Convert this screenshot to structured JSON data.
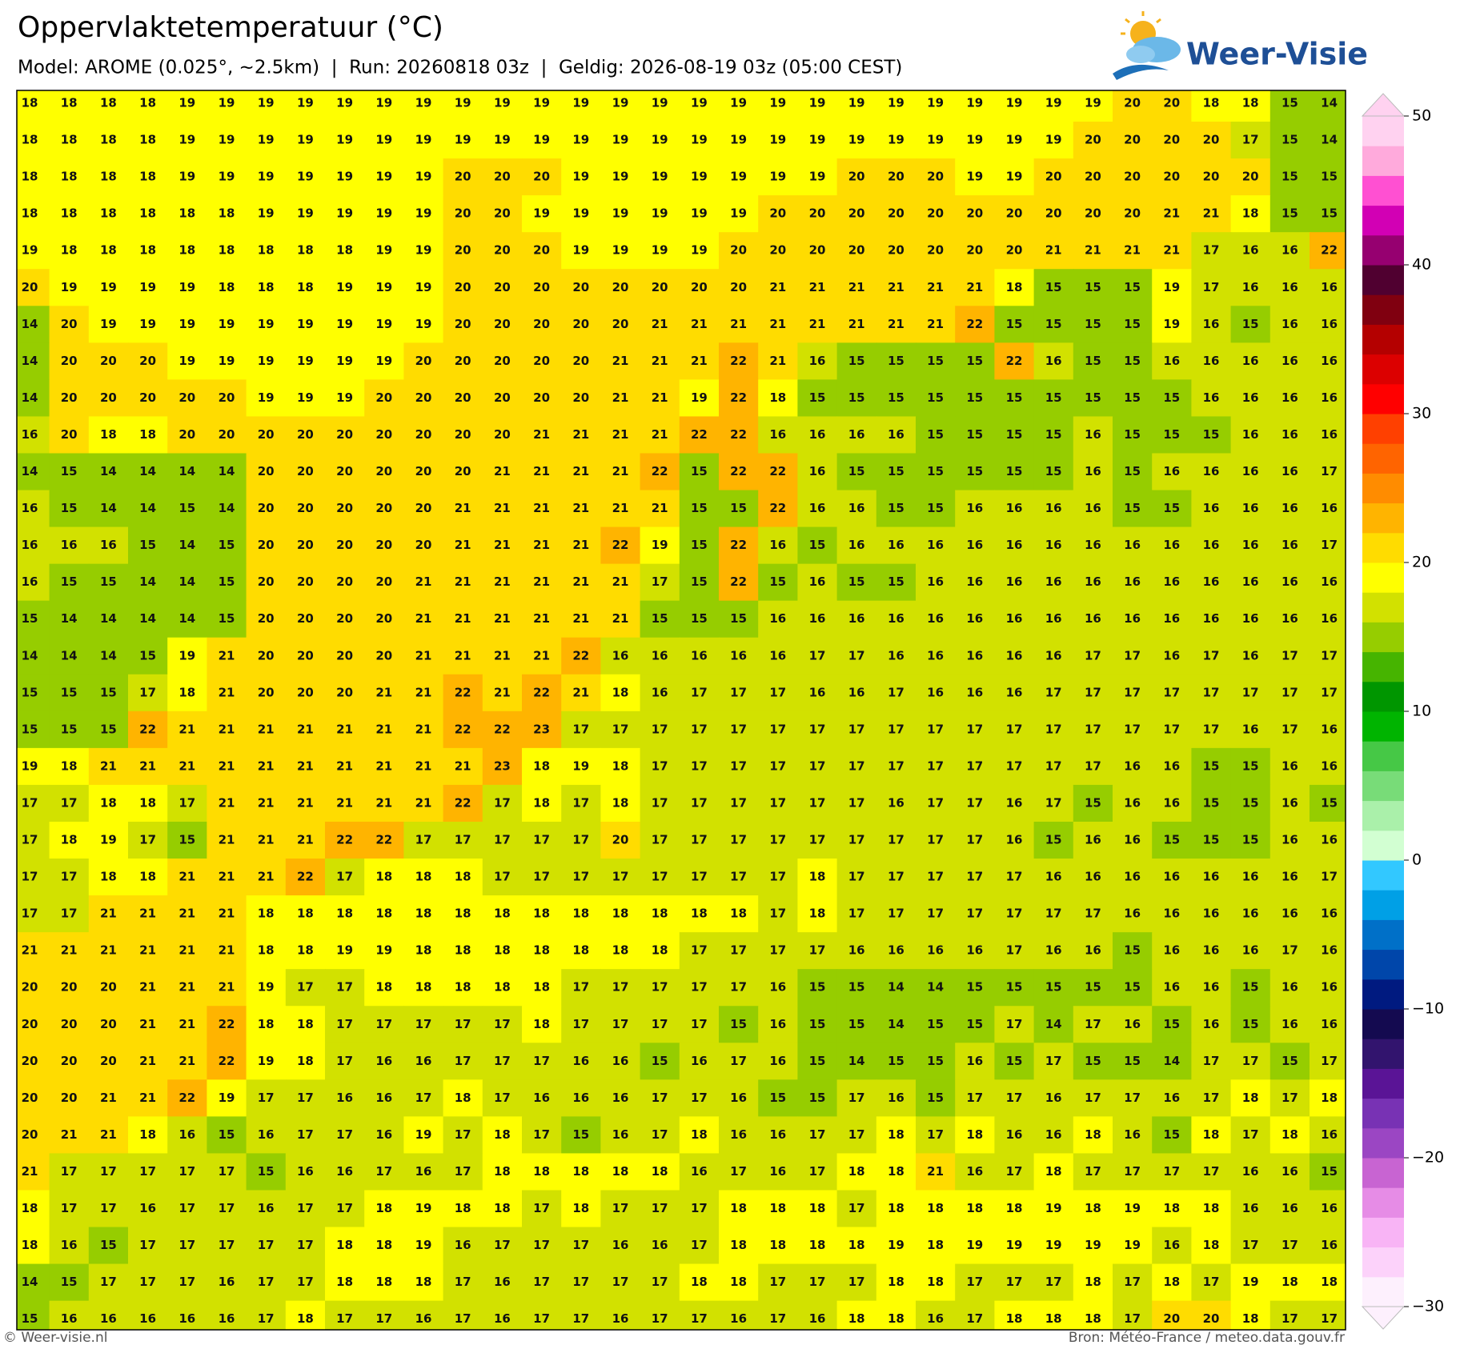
{
  "header": {
    "title": "Oppervlaktetemperatuur (°C)",
    "subtitle": "Model: AROME (0.025°, ~2.5km)  |  Run: 20260818 03z  |  Geldig: 2026-08-19 03z (05:00 CEST)"
  },
  "logo": "Weer-Visie",
  "map": {
    "grid": [
      [
        18,
        18,
        18,
        18,
        19,
        19,
        19,
        19,
        19,
        19,
        19,
        19,
        19,
        19,
        19,
        19,
        19,
        19,
        19,
        19,
        19,
        19,
        19,
        19,
        19,
        19,
        19,
        19,
        20,
        20,
        18,
        18,
        15,
        14
      ],
      [
        18,
        18,
        18,
        18,
        19,
        19,
        19,
        19,
        19,
        19,
        19,
        19,
        19,
        19,
        19,
        19,
        19,
        19,
        19,
        19,
        19,
        19,
        19,
        19,
        19,
        19,
        19,
        20,
        20,
        20,
        20,
        17,
        15,
        14
      ],
      [
        18,
        18,
        18,
        18,
        19,
        19,
        19,
        19,
        19,
        19,
        19,
        20,
        20,
        20,
        19,
        19,
        19,
        19,
        19,
        19,
        19,
        20,
        20,
        20,
        19,
        19,
        20,
        20,
        20,
        20,
        20,
        20,
        15,
        15
      ],
      [
        18,
        18,
        18,
        18,
        18,
        18,
        19,
        19,
        19,
        19,
        19,
        20,
        20,
        19,
        19,
        19,
        19,
        19,
        19,
        20,
        20,
        20,
        20,
        20,
        20,
        20,
        20,
        20,
        20,
        21,
        21,
        18,
        15,
        15
      ],
      [
        19,
        18,
        18,
        18,
        18,
        18,
        18,
        18,
        18,
        19,
        19,
        20,
        20,
        20,
        19,
        19,
        19,
        19,
        20,
        20,
        20,
        20,
        20,
        20,
        20,
        20,
        21,
        21,
        21,
        21,
        17,
        16,
        16,
        22
      ],
      [
        20,
        19,
        19,
        19,
        19,
        18,
        18,
        18,
        19,
        19,
        19,
        20,
        20,
        20,
        20,
        20,
        20,
        20,
        20,
        21,
        21,
        21,
        21,
        21,
        21,
        18,
        15,
        15,
        15,
        19,
        17,
        16,
        16,
        16
      ],
      [
        14,
        20,
        19,
        19,
        19,
        19,
        19,
        19,
        19,
        19,
        19,
        20,
        20,
        20,
        20,
        20,
        21,
        21,
        21,
        21,
        21,
        21,
        21,
        21,
        22,
        15,
        15,
        15,
        15,
        19,
        16,
        15,
        16,
        16
      ],
      [
        14,
        20,
        20,
        20,
        19,
        19,
        19,
        19,
        19,
        19,
        20,
        20,
        20,
        20,
        20,
        21,
        21,
        21,
        22,
        21,
        16,
        15,
        15,
        15,
        15,
        22,
        16,
        15,
        15,
        16,
        16,
        16,
        16,
        16
      ],
      [
        14,
        20,
        20,
        20,
        20,
        20,
        19,
        19,
        19,
        20,
        20,
        20,
        20,
        20,
        20,
        21,
        21,
        19,
        22,
        18,
        15,
        15,
        15,
        15,
        15,
        15,
        15,
        15,
        15,
        15,
        16,
        16,
        16,
        16
      ],
      [
        16,
        20,
        18,
        18,
        20,
        20,
        20,
        20,
        20,
        20,
        20,
        20,
        20,
        21,
        21,
        21,
        21,
        22,
        22,
        16,
        16,
        16,
        16,
        15,
        15,
        15,
        15,
        16,
        15,
        15,
        15,
        16,
        16,
        16
      ],
      [
        14,
        15,
        14,
        14,
        14,
        14,
        20,
        20,
        20,
        20,
        20,
        20,
        21,
        21,
        21,
        21,
        22,
        15,
        22,
        22,
        16,
        15,
        15,
        15,
        15,
        15,
        15,
        16,
        15,
        16,
        16,
        16,
        16,
        17
      ],
      [
        16,
        15,
        14,
        14,
        15,
        14,
        20,
        20,
        20,
        20,
        20,
        21,
        21,
        21,
        21,
        21,
        21,
        15,
        15,
        22,
        16,
        16,
        15,
        15,
        16,
        16,
        16,
        16,
        15,
        15,
        16,
        16,
        16,
        16
      ],
      [
        16,
        16,
        16,
        15,
        14,
        15,
        20,
        20,
        20,
        20,
        20,
        21,
        21,
        21,
        21,
        22,
        19,
        15,
        22,
        16,
        15,
        16,
        16,
        16,
        16,
        16,
        16,
        16,
        16,
        16,
        16,
        16,
        16,
        17
      ],
      [
        16,
        15,
        15,
        14,
        14,
        15,
        20,
        20,
        20,
        20,
        21,
        21,
        21,
        21,
        21,
        21,
        17,
        15,
        22,
        15,
        16,
        15,
        15,
        16,
        16,
        16,
        16,
        16,
        16,
        16,
        16,
        16,
        16,
        16
      ],
      [
        15,
        14,
        14,
        14,
        14,
        15,
        20,
        20,
        20,
        20,
        21,
        21,
        21,
        21,
        21,
        21,
        15,
        15,
        15,
        16,
        16,
        16,
        16,
        16,
        16,
        16,
        16,
        16,
        16,
        16,
        16,
        16,
        16,
        16
      ],
      [
        14,
        14,
        14,
        15,
        19,
        21,
        20,
        20,
        20,
        20,
        21,
        21,
        21,
        21,
        22,
        16,
        16,
        16,
        16,
        16,
        17,
        17,
        16,
        16,
        16,
        16,
        16,
        17,
        17,
        16,
        17,
        16,
        17,
        17
      ],
      [
        15,
        15,
        15,
        17,
        18,
        21,
        20,
        20,
        20,
        21,
        21,
        22,
        21,
        22,
        21,
        18,
        16,
        17,
        17,
        17,
        16,
        16,
        17,
        16,
        16,
        16,
        17,
        17,
        17,
        17,
        17,
        17,
        17,
        17
      ],
      [
        15,
        15,
        15,
        22,
        21,
        21,
        21,
        21,
        21,
        21,
        21,
        22,
        22,
        23,
        17,
        17,
        17,
        17,
        17,
        17,
        17,
        17,
        17,
        17,
        17,
        17,
        17,
        17,
        17,
        17,
        17,
        16,
        17,
        16
      ],
      [
        19,
        18,
        21,
        21,
        21,
        21,
        21,
        21,
        21,
        21,
        21,
        21,
        23,
        18,
        19,
        18,
        17,
        17,
        17,
        17,
        17,
        17,
        17,
        17,
        17,
        17,
        17,
        17,
        16,
        16,
        15,
        15,
        16,
        16
      ],
      [
        17,
        17,
        18,
        18,
        17,
        21,
        21,
        21,
        21,
        21,
        21,
        22,
        17,
        18,
        17,
        18,
        17,
        17,
        17,
        17,
        17,
        17,
        16,
        17,
        17,
        16,
        17,
        15,
        16,
        16,
        15,
        15,
        16,
        15
      ],
      [
        17,
        18,
        19,
        17,
        15,
        21,
        21,
        21,
        22,
        22,
        17,
        17,
        17,
        17,
        17,
        20,
        17,
        17,
        17,
        17,
        17,
        17,
        17,
        17,
        17,
        16,
        15,
        16,
        16,
        15,
        15,
        15,
        16,
        16
      ],
      [
        17,
        17,
        18,
        18,
        21,
        21,
        21,
        22,
        17,
        18,
        18,
        18,
        17,
        17,
        17,
        17,
        17,
        17,
        17,
        17,
        18,
        17,
        17,
        17,
        17,
        17,
        16,
        16,
        16,
        16,
        16,
        16,
        16,
        17
      ],
      [
        17,
        17,
        21,
        21,
        21,
        21,
        18,
        18,
        18,
        18,
        18,
        18,
        18,
        18,
        18,
        18,
        18,
        18,
        18,
        17,
        18,
        17,
        17,
        17,
        17,
        17,
        17,
        17,
        16,
        16,
        16,
        16,
        16,
        16
      ],
      [
        21,
        21,
        21,
        21,
        21,
        21,
        18,
        18,
        19,
        19,
        18,
        18,
        18,
        18,
        18,
        18,
        18,
        17,
        17,
        17,
        17,
        16,
        16,
        16,
        16,
        17,
        16,
        16,
        15,
        16,
        16,
        16,
        17,
        16
      ],
      [
        20,
        20,
        20,
        21,
        21,
        21,
        19,
        17,
        17,
        18,
        18,
        18,
        18,
        18,
        17,
        17,
        17,
        17,
        17,
        16,
        15,
        15,
        14,
        14,
        15,
        15,
        15,
        15,
        15,
        16,
        16,
        15,
        16,
        16
      ],
      [
        20,
        20,
        20,
        21,
        21,
        22,
        18,
        18,
        17,
        17,
        17,
        17,
        17,
        18,
        17,
        17,
        17,
        17,
        15,
        16,
        15,
        15,
        14,
        15,
        15,
        17,
        14,
        17,
        16,
        15,
        16,
        15,
        16,
        16
      ],
      [
        20,
        20,
        20,
        21,
        21,
        22,
        19,
        18,
        17,
        16,
        16,
        17,
        17,
        17,
        16,
        16,
        15,
        16,
        17,
        16,
        15,
        14,
        15,
        15,
        16,
        15,
        17,
        15,
        15,
        14,
        17,
        17,
        15,
        17
      ],
      [
        20,
        20,
        21,
        21,
        22,
        19,
        17,
        17,
        16,
        16,
        17,
        18,
        17,
        16,
        16,
        16,
        17,
        17,
        16,
        15,
        15,
        17,
        16,
        15,
        17,
        17,
        16,
        17,
        17,
        16,
        17,
        18,
        17,
        18
      ],
      [
        20,
        21,
        21,
        18,
        16,
        15,
        16,
        17,
        17,
        16,
        19,
        17,
        18,
        17,
        15,
        16,
        17,
        18,
        16,
        16,
        17,
        17,
        18,
        17,
        18,
        16,
        16,
        18,
        16,
        15,
        18,
        17,
        18,
        16
      ],
      [
        21,
        17,
        17,
        17,
        17,
        17,
        15,
        16,
        16,
        17,
        16,
        17,
        18,
        18,
        18,
        18,
        18,
        16,
        17,
        16,
        17,
        18,
        18,
        21,
        16,
        17,
        18,
        17,
        17,
        17,
        17,
        16,
        16,
        15
      ],
      [
        18,
        17,
        17,
        16,
        17,
        17,
        16,
        17,
        17,
        18,
        19,
        18,
        18,
        17,
        18,
        17,
        17,
        17,
        18,
        18,
        18,
        17,
        18,
        18,
        18,
        18,
        19,
        18,
        19,
        18,
        18,
        16,
        16,
        16
      ],
      [
        18,
        16,
        15,
        17,
        17,
        17,
        17,
        17,
        18,
        18,
        19,
        16,
        17,
        17,
        17,
        16,
        16,
        17,
        18,
        18,
        18,
        18,
        19,
        18,
        19,
        19,
        19,
        19,
        19,
        16,
        18,
        17,
        17,
        16
      ],
      [
        14,
        15,
        17,
        17,
        17,
        16,
        17,
        17,
        18,
        18,
        18,
        17,
        16,
        17,
        17,
        17,
        17,
        18,
        18,
        17,
        17,
        17,
        18,
        18,
        17,
        17,
        17,
        18,
        17,
        18,
        17,
        19,
        18,
        18
      ],
      [
        15,
        16,
        16,
        16,
        16,
        16,
        17,
        18,
        17,
        17,
        16,
        17,
        16,
        17,
        17,
        16,
        17,
        17,
        16,
        17,
        16,
        18,
        18,
        16,
        17,
        18,
        18,
        18,
        17,
        20,
        20,
        18,
        17,
        17
      ]
    ]
  },
  "colorbar": {
    "lim": [
      -30,
      50
    ],
    "colors": [
      "#fdf0fd",
      "#fcd2fa",
      "#f8b4f5",
      "#e68ce6",
      "#c864d2",
      "#9b46c3",
      "#7832b4",
      "#5a1496",
      "#32146e",
      "#140a50",
      "#001a80",
      "#0046aa",
      "#0070c8",
      "#00a0e6",
      "#32c8ff",
      "#d2ffd2",
      "#aaf0aa",
      "#78dc78",
      "#46c846",
      "#00b400",
      "#009600",
      "#46b400",
      "#96cd00",
      "#d2e100",
      "#ffff00",
      "#ffdc00",
      "#ffb400",
      "#ff8c00",
      "#ff6400",
      "#ff4000",
      "#ff0000",
      "#dc0000",
      "#b40000",
      "#800010",
      "#500030",
      "#960070",
      "#d200b4",
      "#ff50d2",
      "#ffaadc",
      "#ffd2f0"
    ],
    "ticks": [
      {
        "value": 50,
        "label": "50"
      },
      {
        "value": 40,
        "label": "40"
      },
      {
        "value": 30,
        "label": "30"
      },
      {
        "value": 20,
        "label": "20"
      },
      {
        "value": 10,
        "label": "10"
      },
      {
        "value": 0,
        "label": "0"
      },
      {
        "value": -10,
        "label": "−10"
      },
      {
        "value": -20,
        "label": "−20"
      },
      {
        "value": -30,
        "label": "−30"
      }
    ]
  },
  "footer": {
    "left": "© Weer-visie.nl",
    "right": "Bron: Météo-France / meteo.data.gouv.fr"
  }
}
